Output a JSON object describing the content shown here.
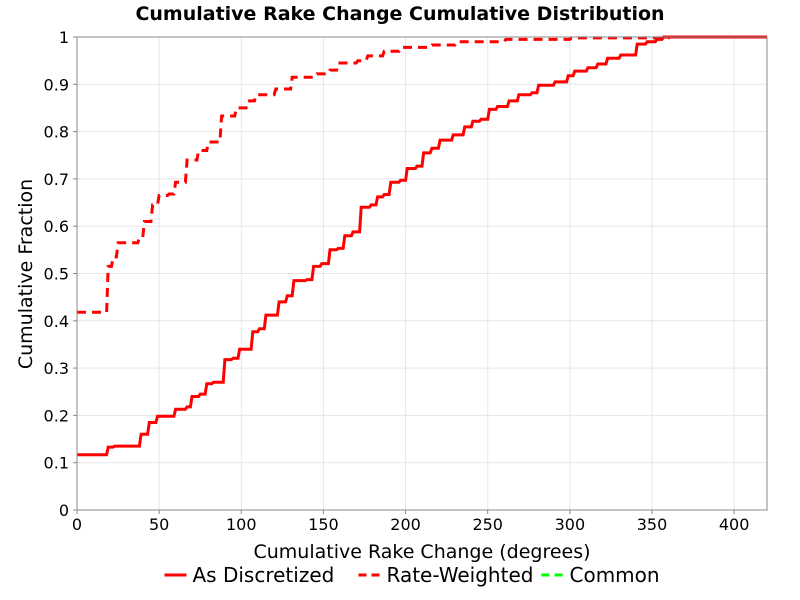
{
  "chart_data": {
    "type": "line",
    "title": "Cumulative Rake Change Cumulative Distribution",
    "xlabel": "Cumulative Rake Change (degrees)",
    "ylabel": "Cumulative Fraction",
    "xlim": [
      0,
      420
    ],
    "ylim": [
      0,
      1
    ],
    "x_ticks": [
      "0",
      "50",
      "100",
      "150",
      "200",
      "250",
      "300",
      "350",
      "400"
    ],
    "y_ticks": [
      "0",
      "0.1",
      "0.2",
      "0.3",
      "0.4",
      "0.5",
      "0.6",
      "0.7",
      "0.8",
      "0.9",
      "1"
    ],
    "grid": true,
    "legend_position": "bottom",
    "series": [
      {
        "name": "As Discretized",
        "color": "#ff0000",
        "style": "solid",
        "points": [
          [
            0,
            0.117
          ],
          [
            18,
            0.117
          ],
          [
            19,
            0.133
          ],
          [
            22,
            0.133
          ],
          [
            23,
            0.135
          ],
          [
            38,
            0.135
          ],
          [
            39,
            0.16
          ],
          [
            43,
            0.16
          ],
          [
            44,
            0.185
          ],
          [
            48,
            0.185
          ],
          [
            49,
            0.198
          ],
          [
            59,
            0.198
          ],
          [
            60,
            0.213
          ],
          [
            66,
            0.213
          ],
          [
            67,
            0.218
          ],
          [
            69,
            0.218
          ],
          [
            70,
            0.24
          ],
          [
            74,
            0.24
          ],
          [
            75,
            0.245
          ],
          [
            78,
            0.245
          ],
          [
            79,
            0.267
          ],
          [
            82,
            0.267
          ],
          [
            83,
            0.27
          ],
          [
            89,
            0.27
          ],
          [
            90,
            0.318
          ],
          [
            94,
            0.318
          ],
          [
            95,
            0.321
          ],
          [
            98,
            0.321
          ],
          [
            99,
            0.34
          ],
          [
            106,
            0.34
          ],
          [
            107,
            0.377
          ],
          [
            110,
            0.377
          ],
          [
            111,
            0.383
          ],
          [
            114,
            0.383
          ],
          [
            115,
            0.412
          ],
          [
            122,
            0.412
          ],
          [
            123,
            0.44
          ],
          [
            127,
            0.44
          ],
          [
            128,
            0.453
          ],
          [
            131,
            0.453
          ],
          [
            132,
            0.485
          ],
          [
            139,
            0.485
          ],
          [
            140,
            0.487
          ],
          [
            143,
            0.487
          ],
          [
            144,
            0.515
          ],
          [
            148,
            0.515
          ],
          [
            149,
            0.521
          ],
          [
            153,
            0.521
          ],
          [
            154,
            0.55
          ],
          [
            158,
            0.55
          ],
          [
            159,
            0.553
          ],
          [
            162,
            0.553
          ],
          [
            163,
            0.58
          ],
          [
            167,
            0.58
          ],
          [
            168,
            0.588
          ],
          [
            172,
            0.588
          ],
          [
            173,
            0.64
          ],
          [
            178,
            0.64
          ],
          [
            179,
            0.645
          ],
          [
            182,
            0.645
          ],
          [
            183,
            0.662
          ],
          [
            186,
            0.662
          ],
          [
            187,
            0.667
          ],
          [
            190,
            0.667
          ],
          [
            191,
            0.693
          ],
          [
            196,
            0.693
          ],
          [
            197,
            0.697
          ],
          [
            200,
            0.697
          ],
          [
            201,
            0.722
          ],
          [
            206,
            0.722
          ],
          [
            207,
            0.727
          ],
          [
            210,
            0.727
          ],
          [
            211,
            0.755
          ],
          [
            215,
            0.755
          ],
          [
            216,
            0.765
          ],
          [
            220,
            0.765
          ],
          [
            221,
            0.782
          ],
          [
            228,
            0.782
          ],
          [
            229,
            0.793
          ],
          [
            235,
            0.793
          ],
          [
            236,
            0.81
          ],
          [
            240,
            0.81
          ],
          [
            241,
            0.822
          ],
          [
            245,
            0.822
          ],
          [
            246,
            0.826
          ],
          [
            250,
            0.826
          ],
          [
            251,
            0.847
          ],
          [
            255,
            0.847
          ],
          [
            256,
            0.853
          ],
          [
            262,
            0.853
          ],
          [
            263,
            0.865
          ],
          [
            268,
            0.865
          ],
          [
            269,
            0.878
          ],
          [
            276,
            0.878
          ],
          [
            277,
            0.882
          ],
          [
            280,
            0.882
          ],
          [
            281,
            0.898
          ],
          [
            290,
            0.898
          ],
          [
            291,
            0.905
          ],
          [
            298,
            0.905
          ],
          [
            299,
            0.918
          ],
          [
            302,
            0.918
          ],
          [
            303,
            0.928
          ],
          [
            310,
            0.928
          ],
          [
            311,
            0.935
          ],
          [
            316,
            0.935
          ],
          [
            317,
            0.943
          ],
          [
            322,
            0.943
          ],
          [
            323,
            0.955
          ],
          [
            330,
            0.955
          ],
          [
            331,
            0.962
          ],
          [
            340,
            0.962
          ],
          [
            341,
            0.985
          ],
          [
            346,
            0.985
          ],
          [
            347,
            0.99
          ],
          [
            352,
            0.99
          ],
          [
            353,
            0.995
          ],
          [
            356,
            0.995
          ],
          [
            357,
            1.0
          ],
          [
            420,
            1.0
          ]
        ]
      },
      {
        "name": "Rate-Weighted",
        "color": "#ff0000",
        "style": "dashed",
        "points": [
          [
            0,
            0.418
          ],
          [
            18,
            0.418
          ],
          [
            19,
            0.515
          ],
          [
            21,
            0.515
          ],
          [
            22,
            0.535
          ],
          [
            24,
            0.535
          ],
          [
            25,
            0.565
          ],
          [
            37,
            0.565
          ],
          [
            38,
            0.575
          ],
          [
            40,
            0.575
          ],
          [
            41,
            0.61
          ],
          [
            45,
            0.61
          ],
          [
            46,
            0.645
          ],
          [
            49,
            0.645
          ],
          [
            50,
            0.665
          ],
          [
            55,
            0.665
          ],
          [
            56,
            0.668
          ],
          [
            59,
            0.668
          ],
          [
            60,
            0.693
          ],
          [
            66,
            0.693
          ],
          [
            67,
            0.74
          ],
          [
            73,
            0.74
          ],
          [
            74,
            0.76
          ],
          [
            79,
            0.76
          ],
          [
            80,
            0.778
          ],
          [
            87,
            0.778
          ],
          [
            88,
            0.833
          ],
          [
            96,
            0.833
          ],
          [
            97,
            0.85
          ],
          [
            104,
            0.85
          ],
          [
            105,
            0.865
          ],
          [
            108,
            0.865
          ],
          [
            109,
            0.878
          ],
          [
            120,
            0.878
          ],
          [
            121,
            0.89
          ],
          [
            130,
            0.89
          ],
          [
            131,
            0.915
          ],
          [
            145,
            0.915
          ],
          [
            146,
            0.922
          ],
          [
            153,
            0.922
          ],
          [
            154,
            0.93
          ],
          [
            158,
            0.93
          ],
          [
            159,
            0.945
          ],
          [
            170,
            0.945
          ],
          [
            171,
            0.95
          ],
          [
            176,
            0.95
          ],
          [
            177,
            0.96
          ],
          [
            186,
            0.96
          ],
          [
            187,
            0.97
          ],
          [
            196,
            0.97
          ],
          [
            197,
            0.978
          ],
          [
            215,
            0.978
          ],
          [
            216,
            0.983
          ],
          [
            230,
            0.983
          ],
          [
            231,
            0.99
          ],
          [
            260,
            0.99
          ],
          [
            261,
            0.995
          ],
          [
            300,
            0.995
          ],
          [
            301,
            0.998
          ],
          [
            360,
            0.998
          ],
          [
            361,
            1.0
          ],
          [
            420,
            1.0
          ]
        ]
      },
      {
        "name": "Common",
        "color": "#00ff00",
        "style": "dashed",
        "points": []
      }
    ]
  }
}
